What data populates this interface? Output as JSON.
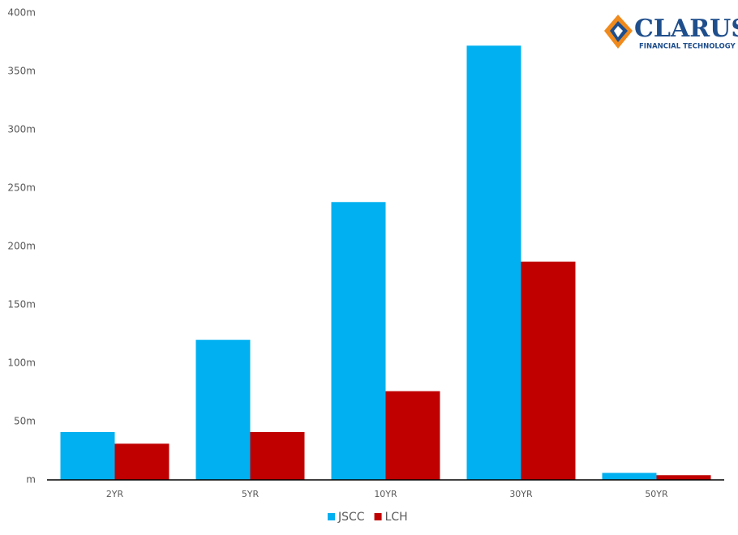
{
  "chart_data": {
    "type": "bar",
    "categories": [
      "2YR",
      "5YR",
      "10YR",
      "30YR",
      "50YR"
    ],
    "series": [
      {
        "name": "JSCC",
        "color": "#00b0f0",
        "values": [
          41,
          120,
          238,
          372,
          6
        ]
      },
      {
        "name": "LCH",
        "color": "#c00000",
        "values": [
          31,
          41,
          76,
          187,
          4
        ]
      }
    ],
    "ylim": [
      0,
      400
    ],
    "yticks": [
      {
        "value": 0,
        "label": "m"
      },
      {
        "value": 50,
        "label": "50m"
      },
      {
        "value": 100,
        "label": "100m"
      },
      {
        "value": 150,
        "label": "150m"
      },
      {
        "value": 200,
        "label": "200m"
      },
      {
        "value": 250,
        "label": "250m"
      },
      {
        "value": 300,
        "label": "300m"
      },
      {
        "value": 350,
        "label": "350m"
      },
      {
        "value": 400,
        "label": "400m"
      }
    ],
    "grid": false,
    "legend": "bottom"
  },
  "logo": {
    "name": "CLARUS",
    "tagline": "FINANCIAL TECHNOLOGY"
  }
}
